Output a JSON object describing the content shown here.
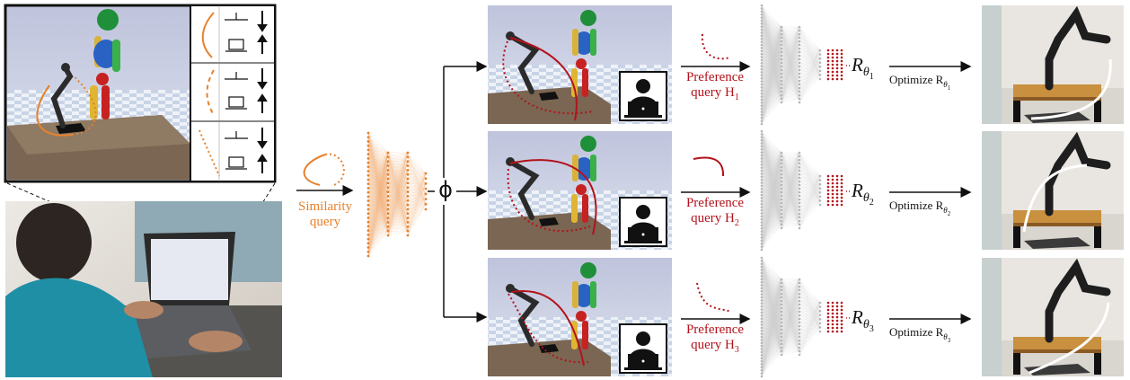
{
  "colors": {
    "similarity": "#e8812b",
    "preference": "#b3121b",
    "network_gray": "#b5b5b5",
    "sky": "#c9cde3",
    "floor": "#e6ebf4",
    "table": "#7a6652"
  },
  "similarity": {
    "label_line1": "Similarity",
    "label_line2": "query"
  },
  "embedding_symbol": "ϕ",
  "rows": [
    {
      "user_icon": "user-woman-laptop-icon",
      "pref_label_line1": "Preference",
      "pref_label_line2": "query H",
      "pref_subscript": "1",
      "reward_main": "R",
      "reward_sub": "θ",
      "reward_subsub": "1",
      "optimize_label": "Optimize R",
      "optimize_sub": "θ",
      "optimize_subsub": "1"
    },
    {
      "user_icon": "user-man-laptop-icon",
      "pref_label_line1": "Preference",
      "pref_label_line2": "query H",
      "pref_subscript": "2",
      "reward_main": "R",
      "reward_sub": "θ",
      "reward_subsub": "2",
      "optimize_label": "Optimize R",
      "optimize_sub": "θ",
      "optimize_subsub": "2"
    },
    {
      "user_icon": "user-person-laptop-icon",
      "pref_label_line1": "Preference",
      "pref_label_line2": "query H",
      "pref_subscript": "3",
      "reward_main": "R",
      "reward_sub": "θ",
      "reward_subsub": "3",
      "optimize_label": "Optimize R",
      "optimize_sub": "θ",
      "optimize_subsub": "3"
    }
  ]
}
